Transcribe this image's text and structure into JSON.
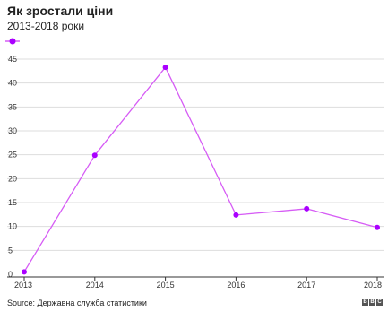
{
  "header": {
    "title": "Як зростали ціни",
    "subtitle": "2013-2018 роки"
  },
  "footer": {
    "source": "Source: Державна служба статистики",
    "logo_letters": [
      "B",
      "B",
      "C"
    ]
  },
  "colors": {
    "series": "#d65cf5",
    "marker": "#aa00ff",
    "grid": "#dddddd",
    "axis": "#333333"
  },
  "chart_data": {
    "type": "line",
    "title": "Як зростали ціни",
    "subtitle": "2013-2018 роки",
    "xlabel": "",
    "ylabel": "",
    "categories": [
      "2013",
      "2014",
      "2015",
      "2016",
      "2017",
      "2018"
    ],
    "series": [
      {
        "values": [
          0.5,
          24.9,
          43.3,
          12.4,
          13.7,
          9.8
        ]
      }
    ],
    "ylim": [
      0,
      45
    ],
    "yticks": [
      0,
      5,
      10,
      15,
      20,
      25,
      30,
      35,
      40,
      45
    ],
    "grid": true,
    "legend": "top-left"
  }
}
